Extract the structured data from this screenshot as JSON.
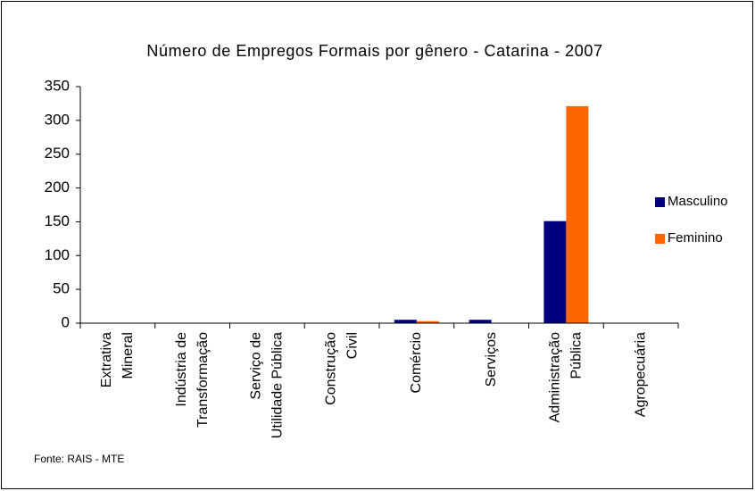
{
  "chart_data": {
    "type": "bar",
    "title": "Número de Empregos Formais por gênero - Catarina - 2007",
    "categories": [
      [
        "Extrativa",
        "Mineral"
      ],
      [
        "Indústria de",
        "Transformação"
      ],
      [
        "Serviço de",
        "Utilidade Pública"
      ],
      [
        "Construção",
        "Civil"
      ],
      [
        "Comércio"
      ],
      [
        "Serviços"
      ],
      [
        "Administração",
        "Pública"
      ],
      [
        "Agropecuária"
      ]
    ],
    "series": [
      {
        "name": "Masculino",
        "color": "#000080",
        "values": [
          0,
          0,
          0,
          0,
          5,
          5,
          151,
          0
        ]
      },
      {
        "name": "Feminino",
        "color": "#ff6600",
        "values": [
          0,
          0,
          0,
          0,
          3,
          0,
          321,
          0
        ]
      }
    ],
    "ylim": [
      0,
      350
    ],
    "yticks": [
      0,
      50,
      100,
      150,
      200,
      250,
      300,
      350
    ],
    "legend": "right",
    "source": "Fonte: RAIS - MTE"
  }
}
